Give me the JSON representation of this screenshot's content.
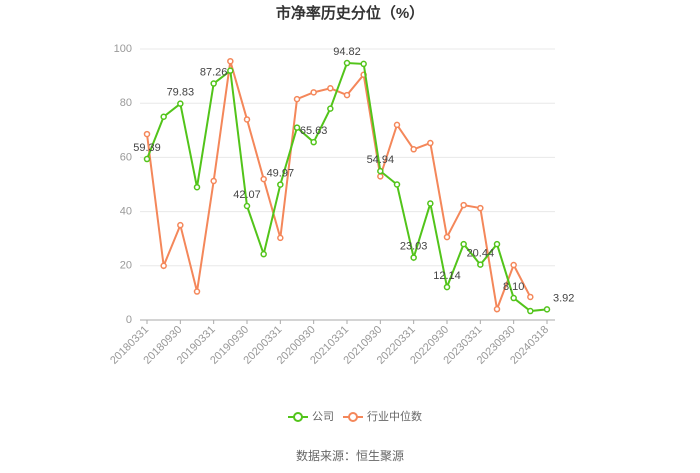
{
  "chart_data": {
    "type": "line",
    "title": "市净率历史分位（%）",
    "source": "数据来源：恒生聚源",
    "categories": [
      "20180331",
      null,
      "20180930",
      null,
      "20190331",
      null,
      "20190930",
      null,
      "20200331",
      null,
      "20200930",
      null,
      "20210331",
      null,
      "20210930",
      null,
      "20220331",
      null,
      "20220930",
      null,
      "20230331",
      null,
      "20230930",
      null,
      "20240318"
    ],
    "series": [
      {
        "name": "公司",
        "color": "#52c41a",
        "values": [
          59.39,
          75,
          79.83,
          49,
          87.26,
          92,
          42.07,
          24.3,
          49.97,
          71,
          65.63,
          78,
          94.82,
          94.5,
          54.94,
          50,
          23.03,
          43,
          12.14,
          28,
          20.44,
          28,
          8.1,
          3.3,
          3.92
        ],
        "value_labels": [
          "59.39",
          null,
          "79.83",
          null,
          "87.26",
          null,
          "42.07",
          null,
          "49.97",
          null,
          "65.63",
          null,
          "94.82",
          null,
          "54.94",
          null,
          "23.03",
          null,
          "12.14",
          null,
          "20.44",
          null,
          "8.10",
          null,
          "3.92"
        ]
      },
      {
        "name": "行业中位数",
        "color": "#f4875a",
        "values": [
          68.6,
          20,
          35,
          10.5,
          51.3,
          95.5,
          74,
          52,
          30.3,
          81.5,
          84,
          85.5,
          83,
          90.5,
          53,
          72,
          63,
          65.3,
          30.6,
          42.4,
          41.3,
          4,
          20.3,
          8.5,
          null
        ]
      }
    ],
    "ylim": [
      0,
      100
    ],
    "yticks": [
      0,
      20,
      40,
      60,
      80,
      100
    ],
    "grid": true
  }
}
